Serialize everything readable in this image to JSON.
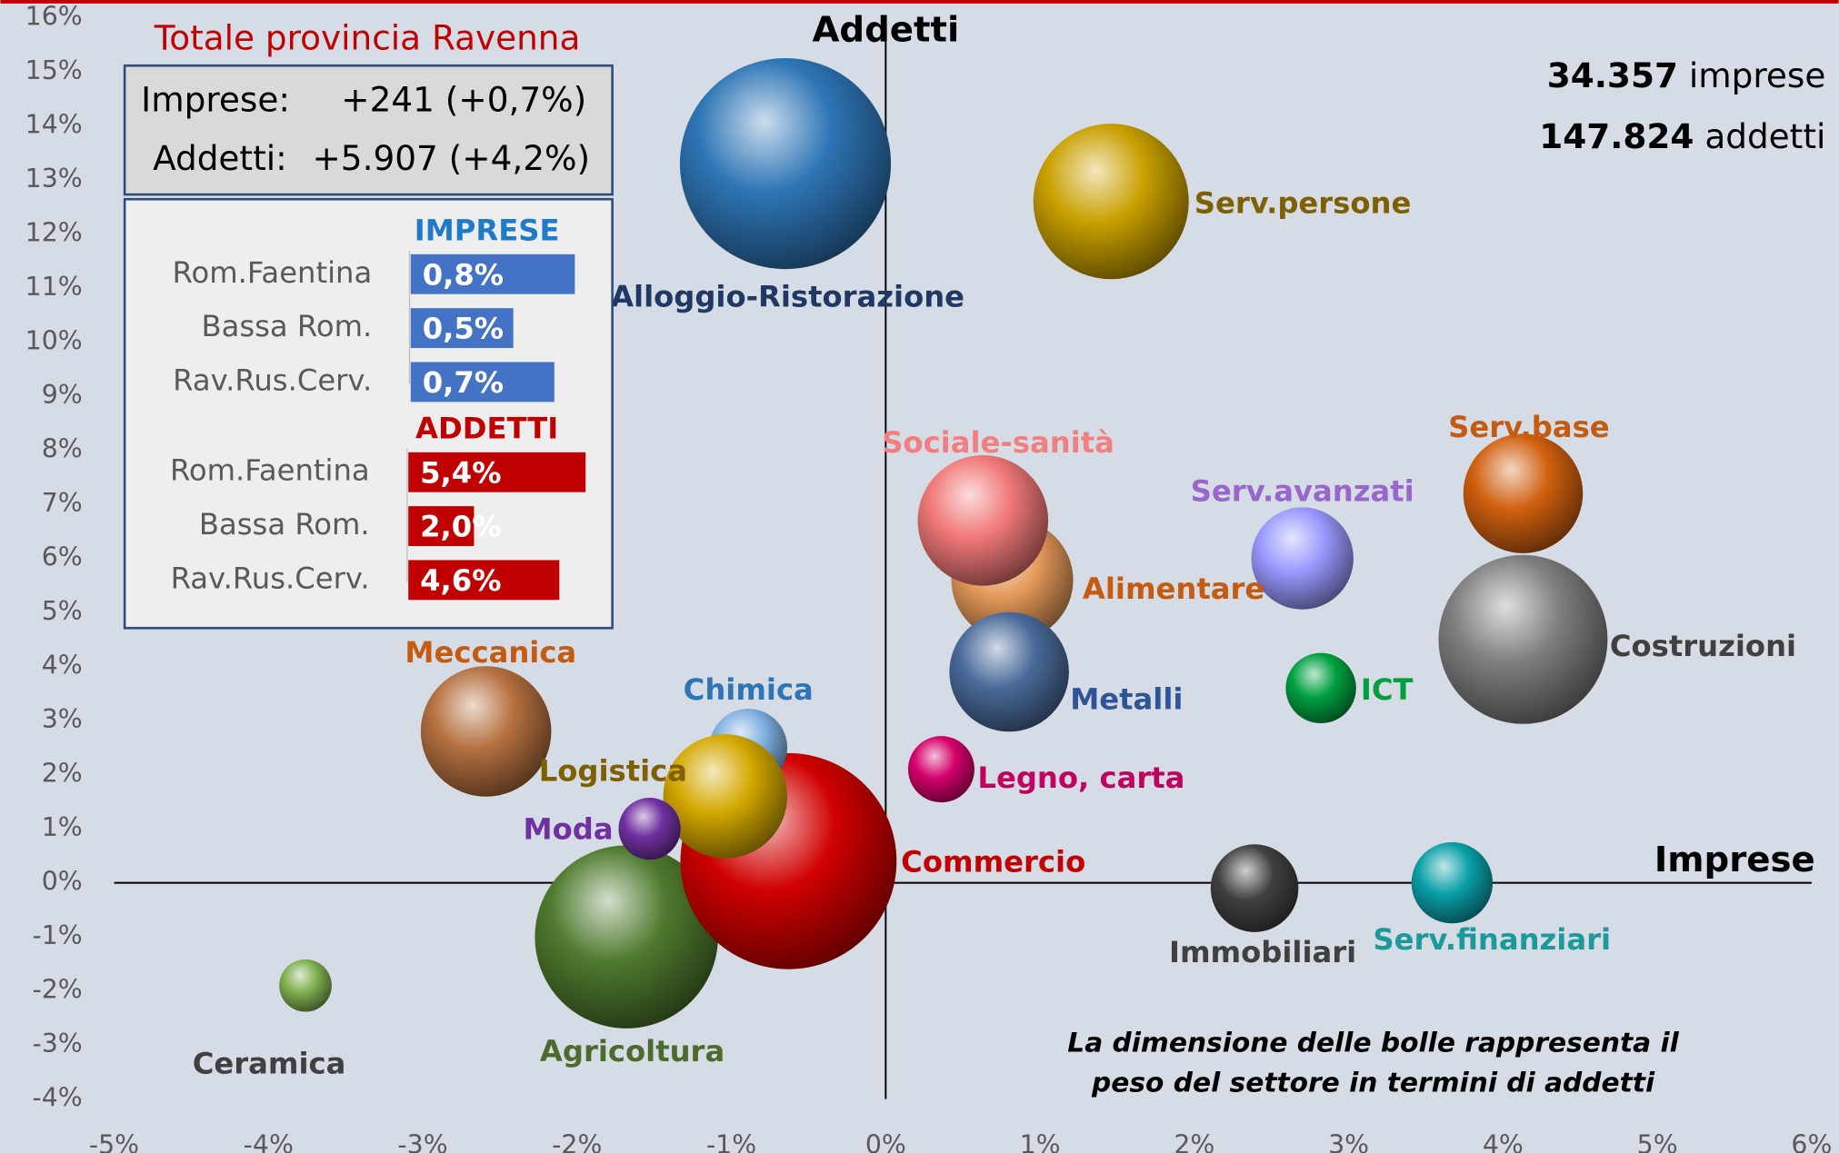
{
  "chart_data": [
    {
      "type": "bubble",
      "x_label": "Imprese",
      "y_label": "Addetti",
      "xlim": [
        -5,
        6
      ],
      "ylim": [
        -4,
        16
      ],
      "xticks": [
        {
          "value": -5,
          "label": "-5%"
        },
        {
          "value": -4,
          "label": "-4%"
        },
        {
          "value": -3,
          "label": "-3%"
        },
        {
          "value": -2,
          "label": "-2%"
        },
        {
          "value": -1,
          "label": "-1%"
        },
        {
          "value": 0,
          "label": "0%"
        },
        {
          "value": 1,
          "label": "1%"
        },
        {
          "value": 2,
          "label": "2%"
        },
        {
          "value": 3,
          "label": "3%"
        },
        {
          "value": 4,
          "label": "4%"
        },
        {
          "value": 5,
          "label": "5%"
        },
        {
          "value": 6,
          "label": "6%"
        }
      ],
      "yticks": [
        {
          "value": 16,
          "label": "16%"
        },
        {
          "value": 15,
          "label": "15%"
        },
        {
          "value": 14,
          "label": "14%"
        },
        {
          "value": 13,
          "label": "13%"
        },
        {
          "value": 12,
          "label": "12%"
        },
        {
          "value": 11,
          "label": "11%"
        },
        {
          "value": 10,
          "label": "10%"
        },
        {
          "value": 9,
          "label": "9%"
        },
        {
          "value": 8,
          "label": "8%"
        },
        {
          "value": 7,
          "label": "7%"
        },
        {
          "value": 6,
          "label": "6%"
        },
        {
          "value": 5,
          "label": "5%"
        },
        {
          "value": 4,
          "label": "4%"
        },
        {
          "value": 3,
          "label": "3%"
        },
        {
          "value": 2,
          "label": "2%"
        },
        {
          "value": 1,
          "label": "1%"
        },
        {
          "value": 0,
          "label": "0%"
        },
        {
          "value": -1,
          "label": "-1%"
        },
        {
          "value": -2,
          "label": "-2%"
        },
        {
          "value": -3,
          "label": "-3%"
        },
        {
          "value": -4,
          "label": "-4%"
        }
      ],
      "categories": [
        "Alloggio-Ristorazione",
        "Serv.persone",
        "Alimentare",
        "Sociale-sanità",
        "Metalli",
        "Legno, carta",
        "Serv.avanzati",
        "Serv.base",
        "Costruzioni",
        "ICT",
        "Immobiliari",
        "Serv.finanziari",
        "Agricoltura",
        "Commercio",
        "Chimica",
        "Logistica",
        "Moda",
        "Meccanica",
        "Ceramica"
      ],
      "x": [
        -0.65,
        1.46,
        0.82,
        0.63,
        0.8,
        0.36,
        2.7,
        4.13,
        4.13,
        2.82,
        2.39,
        3.67,
        -1.68,
        -0.63,
        -0.89,
        -1.04,
        -1.53,
        -2.59,
        -3.76
      ],
      "values": [
        13.3,
        12.6,
        5.6,
        6.7,
        3.9,
        2.1,
        6.0,
        7.2,
        4.5,
        3.6,
        -0.1,
        0.0,
        -1.0,
        0.4,
        2.5,
        1.6,
        1.0,
        2.8,
        -1.9
      ],
      "sizes": [
        81,
        44,
        27,
        31,
        26,
        8,
        19,
        26,
        52,
        9,
        14,
        12,
        61,
        85,
        11,
        28,
        7,
        31,
        5
      ],
      "colors": [
        "#2e75b6",
        "#c9a000",
        "#e59a5a",
        "#f07878",
        "#4a6a9a",
        "#d4006a",
        "#9999ff",
        "#d0600f",
        "#7f7f7f",
        "#00a040",
        "#404040",
        "#0aa0a8",
        "#4e7a2e",
        "#d00000",
        "#7fb0e0",
        "#d4a800",
        "#7030a0",
        "#b5703f",
        "#80b050"
      ],
      "label_colors": [
        "#1f3864",
        "#7f6000",
        "#c55a11",
        "#f08080",
        "#2f5597",
        "#c00060",
        "#9966cc",
        "#c55a11",
        "#404040",
        "#00a040",
        "#404040",
        "#1a9a9a",
        "#4e6b2e",
        "#c00000",
        "#2e75b6",
        "#7f6000",
        "#7030a0",
        "#c55a11",
        "#404040"
      ],
      "note": [
        "La dimensione delle bolle rappresenta il",
        "peso del settore in termini di addetti"
      ],
      "totals": [
        {
          "value": "34.357",
          "text": "imprese"
        },
        {
          "value": "147.824",
          "text": "addetti"
        }
      ],
      "summary": {
        "title": "Totale provincia Ravenna",
        "rows": [
          {
            "label": "Imprese:",
            "value": "+241 (+0,7%)"
          },
          {
            "label": "Addetti:",
            "value": "+5.907 (+4,2%)"
          }
        ]
      }
    },
    {
      "type": "hbar",
      "title": "IMPRESE",
      "categories": [
        "Rom.Faentina",
        "Bassa Rom.",
        "Rav.Rus.Cerv."
      ],
      "values": [
        0.8,
        0.5,
        0.7
      ],
      "value_labels": [
        "0,8%",
        "0,5%",
        "0,7%"
      ],
      "color": "#4472c4",
      "title_color": "#1f7ac8",
      "xlim": [
        0,
        1
      ]
    },
    {
      "type": "hbar",
      "title": "ADDETTI",
      "categories": [
        "Rom.Faentina",
        "Bassa Rom.",
        "Rav.Rus.Cerv."
      ],
      "values": [
        5.4,
        2.0,
        4.6
      ],
      "value_labels": [
        "5,4%",
        "2,0%",
        "4,6%"
      ],
      "color": "#c00000",
      "title_color": "#c00000",
      "xlim": [
        0,
        6
      ]
    }
  ]
}
